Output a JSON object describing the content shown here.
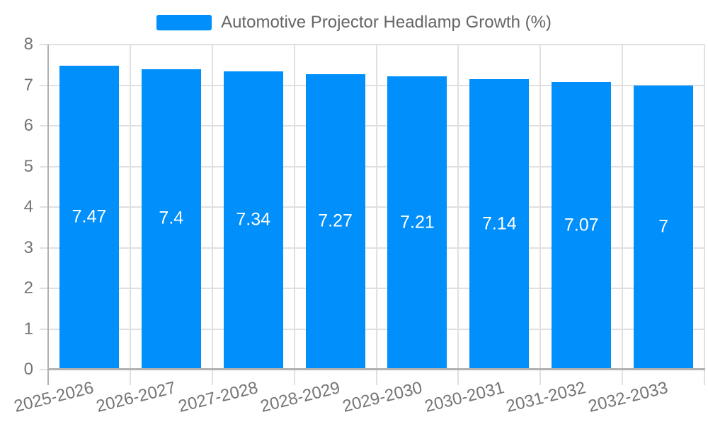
{
  "legend": {
    "label": "Automotive Projector Headlamp Growth (%)",
    "swatch_color": "#008FFB"
  },
  "chart_data": {
    "type": "bar",
    "title": "Automotive Projector Headlamp Growth (%)",
    "categories": [
      "2025-2026",
      "2026-2027",
      "2027-2028",
      "2028-2029",
      "2029-2030",
      "2030-2031",
      "2031-2032",
      "2032-2033"
    ],
    "values": [
      7.47,
      7.4,
      7.34,
      7.27,
      7.21,
      7.14,
      7.07,
      7
    ],
    "data_labels": [
      "7.47",
      "7.4",
      "7.34",
      "7.27",
      "7.21",
      "7.14",
      "7.07",
      "7"
    ],
    "y_ticks": [
      0,
      1,
      2,
      3,
      4,
      5,
      6,
      7,
      8
    ],
    "ylim": [
      0,
      8
    ],
    "xlabel": "",
    "ylabel": "",
    "grid": true,
    "legend_position": "top",
    "bar_color": "#008FFB",
    "data_label_color": "#ffffff"
  },
  "colors": {
    "bar": "#008FFB",
    "grid": "#e0e0e0",
    "axis": "#b1b1b1",
    "axis_label": "#757575",
    "legend_text": "#666666",
    "value_label": "#ffffff",
    "background": "#ffffff"
  }
}
